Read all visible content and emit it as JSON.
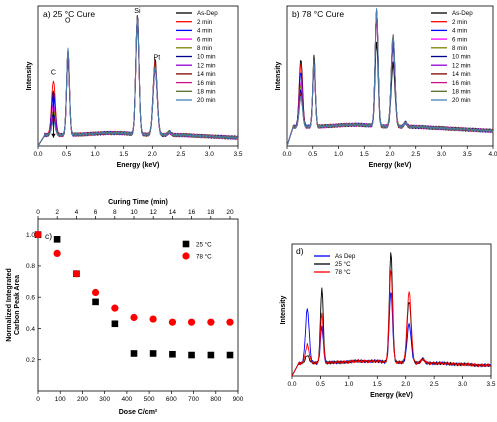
{
  "chart_data": [
    {
      "id": "a",
      "type": "line",
      "label": "a) 25 °C Cure",
      "xlabel": "Energy (keV)",
      "ylabel": "Intensity",
      "xlim": [
        0,
        3.5
      ],
      "xticks": [
        "0.0",
        "0.5",
        "1.0",
        "1.5",
        "2.0",
        "2.5",
        "3.0",
        "3.5"
      ],
      "legend_position": "top-right",
      "peak_labels": [
        {
          "text": "C",
          "x": 0.27,
          "y": 0.52
        },
        {
          "text": "O",
          "x": 0.52,
          "y": 0.9
        },
        {
          "text": "Si",
          "x": 1.74,
          "y": 0.97
        },
        {
          "text": "Pt",
          "x": 2.08,
          "y": 0.63
        }
      ],
      "arrow": {
        "x": 0.27,
        "y_from": 0.36,
        "y_to": 0.06
      },
      "peaks": [
        {
          "x": 0.27,
          "w": 0.045
        },
        {
          "x": 0.525,
          "w": 0.035
        },
        {
          "x": 1.74,
          "w": 0.04
        },
        {
          "x": 2.05,
          "w": 0.05
        },
        {
          "x": 2.3,
          "w": 0.04
        }
      ],
      "baseline": 0.08,
      "series": [
        {
          "name": "As-Dep",
          "color": "#000000",
          "amps": [
            0.32,
            0.55,
            0.88,
            0.55,
            0.02
          ]
        },
        {
          "name": "2 min",
          "color": "#ff0000",
          "amps": [
            0.4,
            0.57,
            0.8,
            0.53,
            0.02
          ]
        },
        {
          "name": "4 min",
          "color": "#0000ff",
          "amps": [
            0.3,
            0.58,
            0.86,
            0.5,
            0.02
          ]
        },
        {
          "name": "6 min",
          "color": "#ff00ff",
          "amps": [
            0.22,
            0.58,
            0.84,
            0.48,
            0.02
          ]
        },
        {
          "name": "8 min",
          "color": "#808000",
          "amps": [
            0.18,
            0.6,
            0.85,
            0.49,
            0.02
          ]
        },
        {
          "name": "10 min",
          "color": "#00008b",
          "amps": [
            0.15,
            0.61,
            0.86,
            0.48,
            0.02
          ]
        },
        {
          "name": "12 min",
          "color": "#9400d3",
          "amps": [
            0.13,
            0.61,
            0.86,
            0.49,
            0.02
          ]
        },
        {
          "name": "14 min",
          "color": "#800000",
          "amps": [
            0.12,
            0.62,
            0.85,
            0.5,
            0.02
          ]
        },
        {
          "name": "16 min",
          "color": "#c71585",
          "amps": [
            0.11,
            0.62,
            0.84,
            0.49,
            0.02
          ]
        },
        {
          "name": "18 min",
          "color": "#556b2f",
          "amps": [
            0.1,
            0.62,
            0.85,
            0.5,
            0.02
          ]
        },
        {
          "name": "20 min",
          "color": "#4682b4",
          "amps": [
            0.1,
            0.63,
            0.84,
            0.5,
            0.02
          ]
        }
      ]
    },
    {
      "id": "b",
      "type": "line",
      "label": "b) 78 °C Cure",
      "xlabel": "Energy (keV)",
      "ylabel": "Intensity",
      "xlim": [
        0,
        4.0
      ],
      "xticks": [
        "0.0",
        "0.5",
        "1.0",
        "1.5",
        "2.0",
        "2.5",
        "3.0",
        "3.5",
        "4.0"
      ],
      "legend_position": "top-right",
      "peaks": [
        {
          "x": 0.27,
          "w": 0.045
        },
        {
          "x": 0.525,
          "w": 0.035
        },
        {
          "x": 1.74,
          "w": 0.04
        },
        {
          "x": 2.06,
          "w": 0.05
        },
        {
          "x": 2.3,
          "w": 0.04
        }
      ],
      "baseline": 0.14,
      "series": [
        {
          "name": "As-Dep",
          "color": "#000000",
          "amps": [
            0.5,
            0.52,
            0.62,
            0.46,
            0.03
          ]
        },
        {
          "name": "2 min",
          "color": "#ff0000",
          "amps": [
            0.46,
            0.42,
            0.84,
            0.58,
            0.03
          ]
        },
        {
          "name": "4 min",
          "color": "#0000ff",
          "amps": [
            0.4,
            0.44,
            0.86,
            0.6,
            0.03
          ]
        },
        {
          "name": "6 min",
          "color": "#ff00ff",
          "amps": [
            0.33,
            0.44,
            0.8,
            0.63,
            0.03
          ]
        },
        {
          "name": "8 min",
          "color": "#808000",
          "amps": [
            0.3,
            0.45,
            0.84,
            0.66,
            0.03
          ]
        },
        {
          "name": "10 min",
          "color": "#00008b",
          "amps": [
            0.27,
            0.46,
            0.86,
            0.64,
            0.03
          ]
        },
        {
          "name": "12 min",
          "color": "#9400d3",
          "amps": [
            0.25,
            0.46,
            0.85,
            0.65,
            0.03
          ]
        },
        {
          "name": "14 min",
          "color": "#800000",
          "amps": [
            0.24,
            0.47,
            0.84,
            0.66,
            0.03
          ]
        },
        {
          "name": "16 min",
          "color": "#c71585",
          "amps": [
            0.23,
            0.47,
            0.85,
            0.66,
            0.03
          ]
        },
        {
          "name": "18 min",
          "color": "#556b2f",
          "amps": [
            0.22,
            0.48,
            0.85,
            0.67,
            0.03
          ]
        },
        {
          "name": "20 min",
          "color": "#4682b4",
          "amps": [
            0.22,
            0.48,
            0.86,
            0.66,
            0.03
          ]
        }
      ]
    },
    {
      "id": "c",
      "type": "scatter",
      "label": "c)",
      "xlabel": "Dose C/cm²",
      "ylabel_lines": [
        "Normalized Integrated",
        "Carbon Peak Area"
      ],
      "top_xlabel": "Curing Time (min)",
      "xlim": [
        0,
        900
      ],
      "ylim": [
        0,
        1.1
      ],
      "xticks": [
        "0",
        "100",
        "200",
        "300",
        "400",
        "500",
        "600",
        "700",
        "800",
        "900"
      ],
      "top_xticks": [
        "0",
        "2",
        "4",
        "6",
        "8",
        "10",
        "12",
        "14",
        "16",
        "18",
        "20"
      ],
      "top_xticks_dose_per_unit": 43.2,
      "yticks": [
        "0.2",
        "0.4",
        "0.6",
        "0.8",
        "1.0"
      ],
      "legend_position": "top-right",
      "series": [
        {
          "name": "25 °C",
          "color": "#000000",
          "marker": "square",
          "x": [
            0,
            86,
            173,
            259,
            346,
            432,
            518,
            605,
            691,
            778,
            864
          ],
          "y": [
            1.0,
            0.97,
            0.75,
            0.57,
            0.43,
            0.24,
            0.24,
            0.235,
            0.23,
            0.23,
            0.23
          ]
        },
        {
          "name": "78 °C",
          "color": "#ff0000",
          "marker": "circle",
          "x": [
            0,
            86,
            173,
            259,
            346,
            432,
            518,
            605,
            691,
            778,
            864
          ],
          "y": [
            1.0,
            0.88,
            0.75,
            0.63,
            0.53,
            0.47,
            0.46,
            0.44,
            0.44,
            0.44,
            0.44
          ]
        }
      ]
    },
    {
      "id": "d",
      "type": "line",
      "label": "d)",
      "xlabel": "Energy (keV)",
      "ylabel": "Intensity",
      "xlim": [
        0,
        3.5
      ],
      "xticks": [
        "0.0",
        "0.5",
        "1.0",
        "1.5",
        "2.0",
        "2.5",
        "3.0",
        "3.5"
      ],
      "legend_position": "top-left",
      "peaks": [
        {
          "x": 0.27,
          "w": 0.045
        },
        {
          "x": 0.525,
          "w": 0.035
        },
        {
          "x": 1.74,
          "w": 0.04
        },
        {
          "x": 2.06,
          "w": 0.05
        },
        {
          "x": 2.3,
          "w": 0.04
        }
      ],
      "baseline": 0.1,
      "series": [
        {
          "name": "As Dep",
          "color": "#0000ff",
          "amps": [
            0.42,
            0.28,
            0.55,
            0.3,
            0.03
          ]
        },
        {
          "name": "25 °C",
          "color": "#000000",
          "amps": [
            0.06,
            0.58,
            0.85,
            0.48,
            0.03
          ]
        },
        {
          "name": "78 °C",
          "color": "#ff0000",
          "amps": [
            0.14,
            0.38,
            0.72,
            0.55,
            0.03
          ]
        }
      ]
    }
  ]
}
